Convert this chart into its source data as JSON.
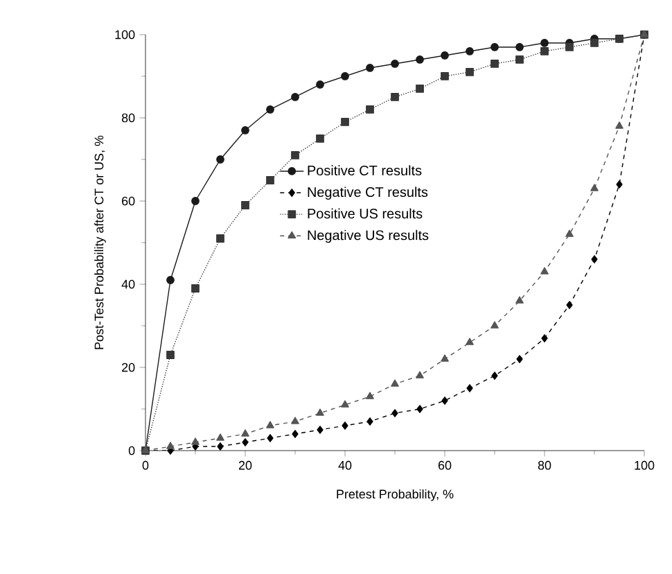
{
  "chart_data": {
    "type": "line",
    "xlabel": "Pretest Probability, %",
    "ylabel": "Post-Test Probability after CT or US, %",
    "x": [
      0,
      5,
      10,
      15,
      20,
      25,
      30,
      35,
      40,
      45,
      50,
      55,
      60,
      65,
      70,
      75,
      80,
      85,
      90,
      95,
      100
    ],
    "series": [
      {
        "name": "Positive CT results",
        "color": "#1a1a1a",
        "marker": "circle",
        "line_style": "solid",
        "values": [
          0,
          41,
          60,
          70,
          77,
          82,
          85,
          88,
          90,
          92,
          93,
          94,
          95,
          96,
          97,
          97,
          98,
          98,
          99,
          99,
          100
        ]
      },
      {
        "name": "Negative CT results",
        "color": "#000000",
        "marker": "diamond",
        "line_style": "dashed",
        "values": [
          0,
          0,
          1,
          1,
          2,
          3,
          4,
          5,
          6,
          7,
          9,
          10,
          12,
          15,
          18,
          22,
          27,
          35,
          46,
          64,
          100
        ]
      },
      {
        "name": "Positive US results",
        "color": "#383838",
        "marker": "square",
        "line_style": "dotted",
        "values": [
          0,
          23,
          39,
          51,
          59,
          65,
          71,
          75,
          79,
          82,
          85,
          87,
          90,
          91,
          93,
          94,
          96,
          97,
          98,
          99,
          100
        ]
      },
      {
        "name": "Negative US results",
        "color": "#555555",
        "marker": "triangle",
        "line_style": "dashed",
        "values": [
          0,
          1,
          2,
          3,
          4,
          6,
          7,
          9,
          11,
          13,
          16,
          18,
          22,
          26,
          30,
          36,
          43,
          52,
          63,
          78,
          100
        ]
      }
    ],
    "xlim": [
      0,
      100
    ],
    "ylim": [
      0,
      100
    ],
    "xticks": [
      0,
      20,
      40,
      60,
      80,
      100
    ],
    "yticks": [
      0,
      20,
      40,
      60,
      80,
      100
    ],
    "grid": false,
    "legend": "left"
  }
}
